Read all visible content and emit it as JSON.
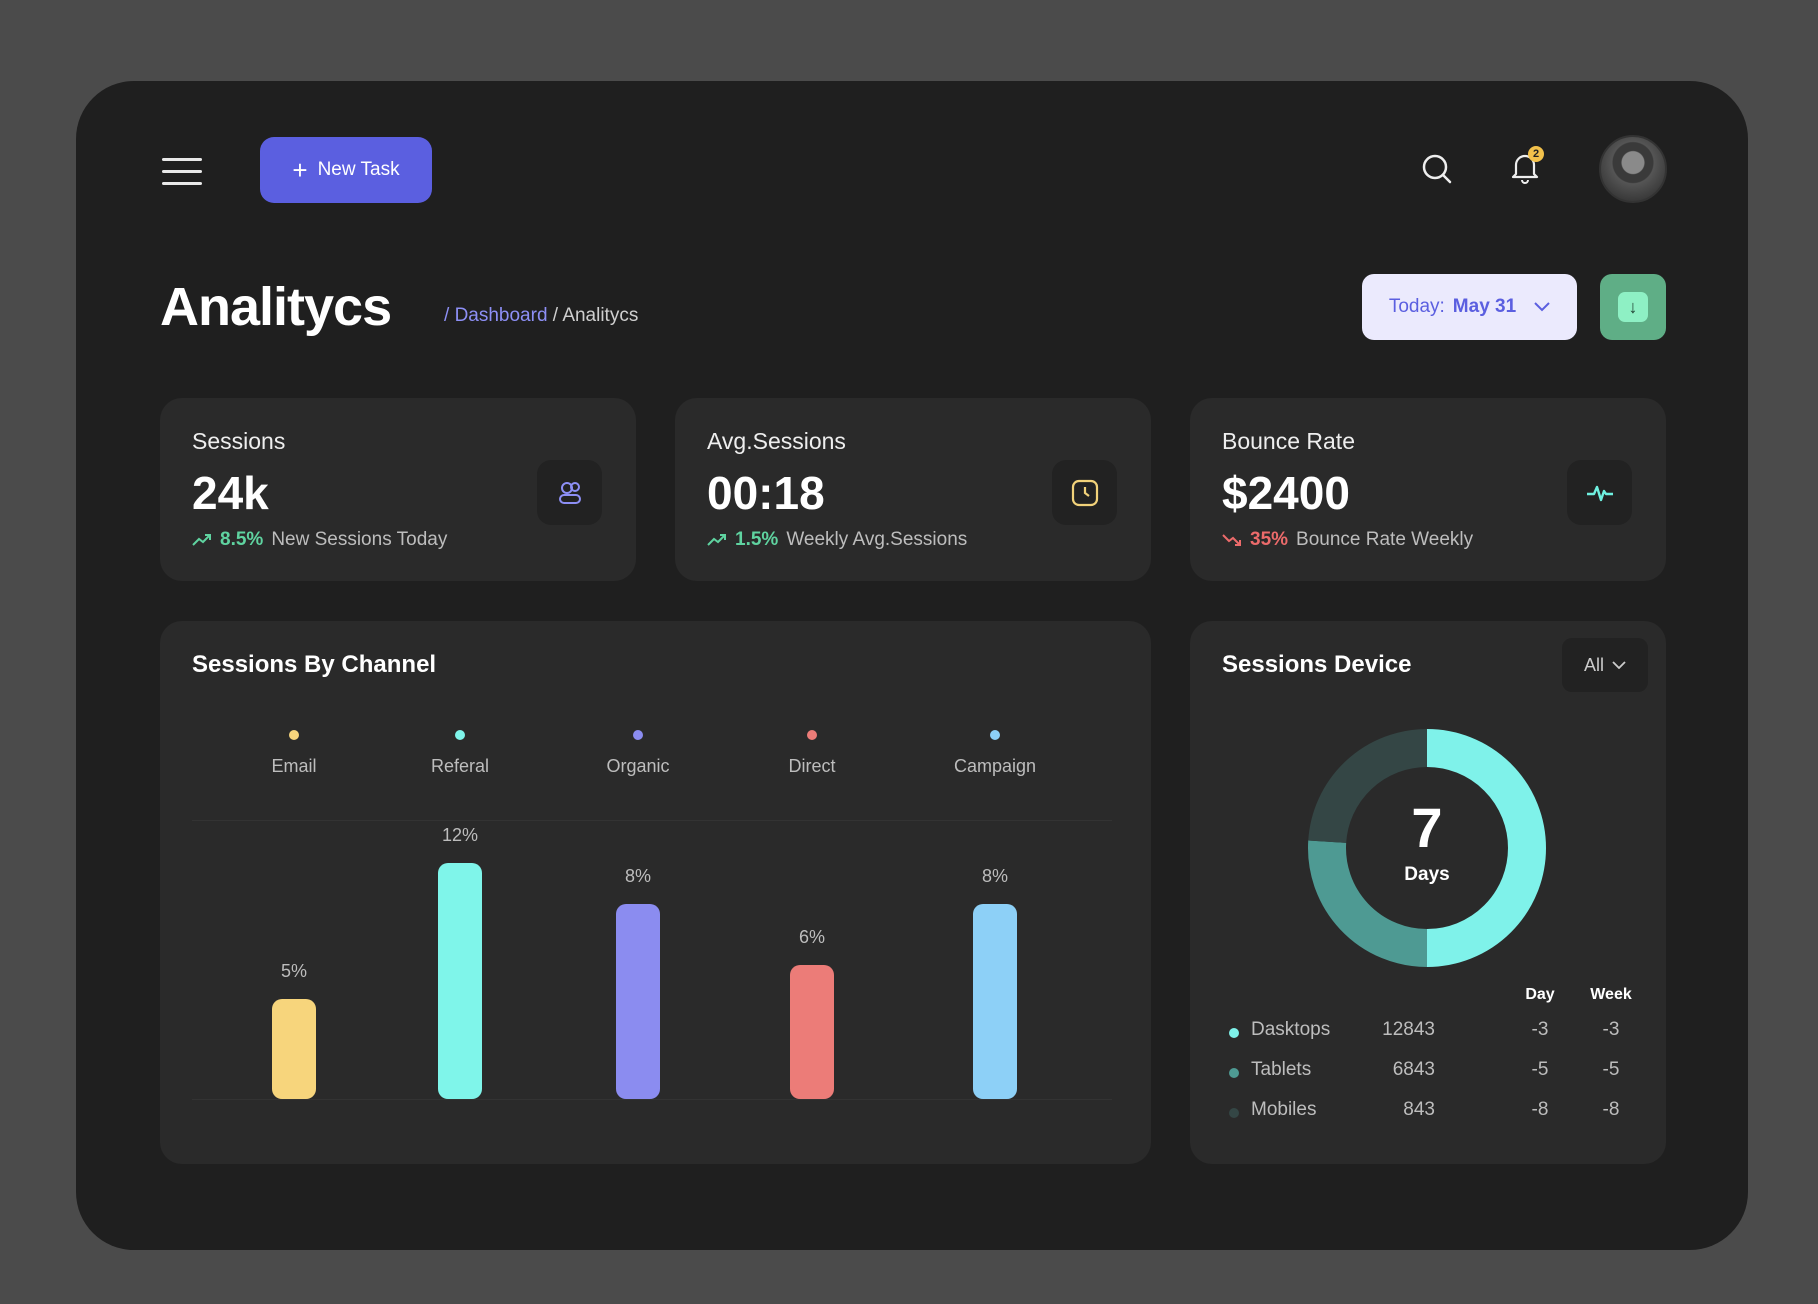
{
  "header": {
    "new_task_label": "New Task",
    "notification_count": "2"
  },
  "page": {
    "title": "Analitycs",
    "breadcrumb": [
      "Dashboard",
      "Analitycs"
    ],
    "date_label": "Today:",
    "date_value": "May 31"
  },
  "stats": [
    {
      "label": "Sessions",
      "value": "24k",
      "change": "8.5%",
      "change_text": "New Sessions Today",
      "trend": "up",
      "icon": "users-icon",
      "color": "#8d8ff5"
    },
    {
      "label": "Avg.Sessions",
      "value": "00:18",
      "change": "1.5%",
      "change_text": "Weekly Avg.Sessions",
      "trend": "up",
      "icon": "clock-icon",
      "color": "#f2d27a"
    },
    {
      "label": "Bounce Rate",
      "value": "$2400",
      "change": "35%",
      "change_text": "Bounce Rate Weekly",
      "trend": "down",
      "icon": "pulse-icon",
      "color": "#6ff0e0"
    }
  ],
  "channel": {
    "title": "Sessions By Channel"
  },
  "chart_data": [
    {
      "type": "bar",
      "title": "Sessions By Channel",
      "categories": [
        "Email",
        "Referal",
        "Organic",
        "Direct",
        "Campaign"
      ],
      "values": [
        5,
        12,
        8,
        6,
        8
      ],
      "labels": [
        "5%",
        "12%",
        "8%",
        "6%",
        "8%"
      ],
      "colors": [
        "#f7d57c",
        "#7ff5ea",
        "#8b8cf0",
        "#ec7c78",
        "#8dd0f7"
      ],
      "legend": "top"
    },
    {
      "type": "pie",
      "title": "Sessions Device",
      "center_value": "7",
      "center_label": "Days",
      "series": [
        {
          "name": "Dasktops",
          "share": 0.5,
          "color": "#7ff2ea"
        },
        {
          "name": "Tablets",
          "share": 0.26,
          "color": "#4e9a93"
        },
        {
          "name": "Mobiles",
          "share": 0.24,
          "color": "#344645"
        }
      ]
    }
  ],
  "device": {
    "title": "Sessions Device",
    "filter": "All",
    "col_day": "Day",
    "col_week": "Week",
    "rows": [
      {
        "name": "Dasktops",
        "value": "12843",
        "day": "-3",
        "week": "-3"
      },
      {
        "name": "Tablets",
        "value": "6843",
        "day": "-5",
        "week": "-5"
      },
      {
        "name": "Mobiles",
        "value": "843",
        "day": "-8",
        "week": "-8"
      }
    ]
  }
}
